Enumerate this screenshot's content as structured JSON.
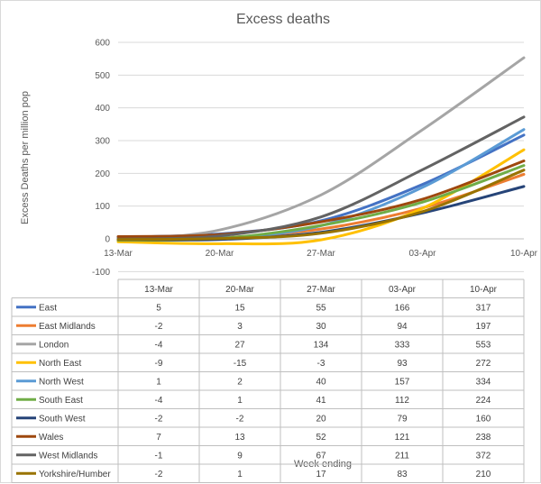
{
  "chart_data": {
    "type": "line",
    "title": "Excess deaths",
    "xlabel": "Week ending",
    "ylabel": "Excess Deaths per million pop",
    "categories": [
      "13-Mar",
      "20-Mar",
      "27-Mar",
      "03-Apr",
      "10-Apr"
    ],
    "ylim": [
      -100,
      600
    ],
    "yticks": [
      -100,
      0,
      100,
      200,
      300,
      400,
      500,
      600
    ],
    "grid": true,
    "legend": "data-table",
    "series": [
      {
        "name": "East",
        "color": "#4472c4",
        "values": [
          5,
          15,
          55,
          166,
          317
        ]
      },
      {
        "name": "East Midlands",
        "color": "#ed7d31",
        "values": [
          -2,
          3,
          30,
          94,
          197
        ]
      },
      {
        "name": "London",
        "color": "#a5a5a5",
        "values": [
          -4,
          27,
          134,
          333,
          553
        ]
      },
      {
        "name": "North East",
        "color": "#ffc000",
        "values": [
          -9,
          -15,
          -3,
          93,
          272
        ]
      },
      {
        "name": "North West",
        "color": "#5b9bd5",
        "values": [
          1,
          2,
          40,
          157,
          334
        ]
      },
      {
        "name": "South East",
        "color": "#70ad47",
        "values": [
          -4,
          1,
          41,
          112,
          224
        ]
      },
      {
        "name": "South West",
        "color": "#264478",
        "values": [
          -2,
          -2,
          20,
          79,
          160
        ]
      },
      {
        "name": "Wales",
        "color": "#9e480e",
        "values": [
          7,
          13,
          52,
          121,
          238
        ]
      },
      {
        "name": "West Midlands",
        "color": "#636363",
        "values": [
          -1,
          9,
          67,
          211,
          372
        ]
      },
      {
        "name": "Yorkshire/Humber",
        "color": "#997300",
        "values": [
          -2,
          1,
          17,
          83,
          210
        ]
      }
    ]
  }
}
